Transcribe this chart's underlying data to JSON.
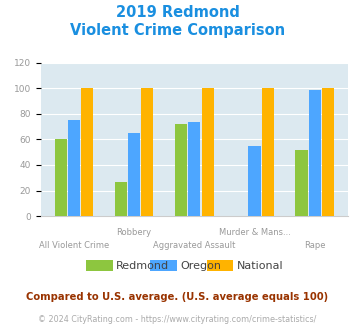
{
  "title_line1": "2019 Redmond",
  "title_line2": "Violent Crime Comparison",
  "categories": [
    "All Violent Crime",
    "Robbery",
    "Aggravated Assault",
    "Murder & Mans...",
    "Rape"
  ],
  "category_labels_row1": [
    "",
    "Robbery",
    "",
    "Murder & Mans...",
    ""
  ],
  "category_labels_row2": [
    "All Violent Crime",
    "",
    "Aggravated Assault",
    "",
    "Rape"
  ],
  "series": {
    "Redmond": [
      60,
      27,
      72,
      0,
      52
    ],
    "Oregon": [
      75,
      65,
      74,
      55,
      99
    ],
    "National": [
      100,
      100,
      100,
      100,
      100
    ]
  },
  "colors": {
    "Redmond": "#8dc63f",
    "Oregon": "#4da6ff",
    "National": "#ffb300"
  },
  "ylim": [
    0,
    120
  ],
  "yticks": [
    0,
    20,
    40,
    60,
    80,
    100,
    120
  ],
  "plot_bg_color": "#dce9f0",
  "title_color": "#1a8fe0",
  "axis_label_color": "#999999",
  "legend_label_color": "#444444",
  "footnote1": "Compared to U.S. average. (U.S. average equals 100)",
  "footnote2": "© 2024 CityRating.com - https://www.cityrating.com/crime-statistics/",
  "footnote1_color": "#993300",
  "footnote2_color": "#aaaaaa",
  "bar_width": 0.22
}
